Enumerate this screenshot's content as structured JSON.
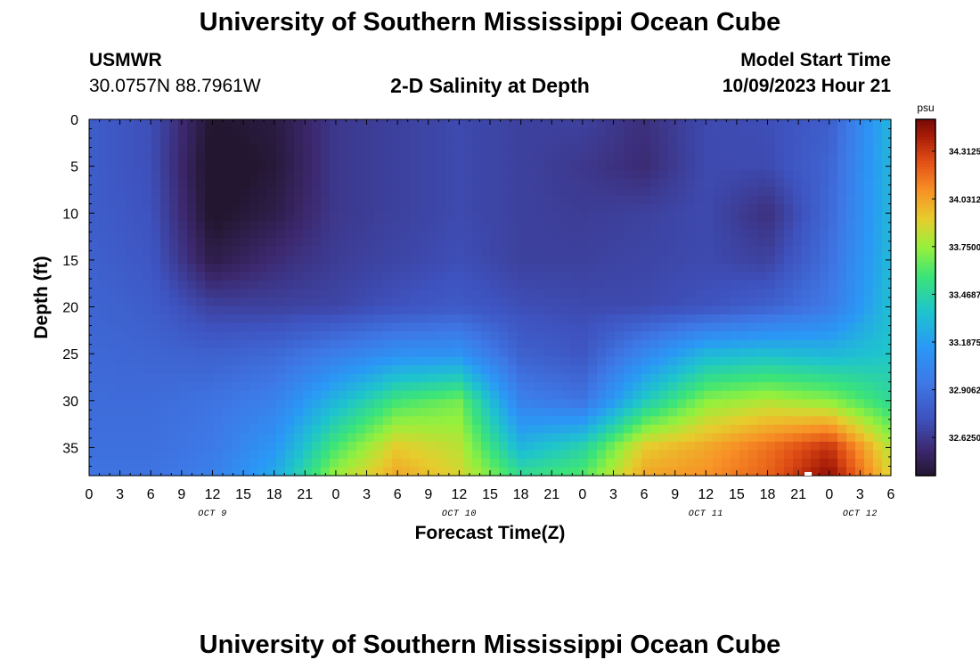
{
  "header": {
    "title": "University of Southern Mississippi Ocean Cube",
    "station": "USMWR",
    "coords": "30.0757N  88.7961W",
    "subtitle": "2-D Salinity at Depth",
    "run_label": "Model Start Time",
    "run_time": "10/09/2023 Hour 21"
  },
  "footer": {
    "title": "University of Southern Mississippi Ocean Cube"
  },
  "chart_data": {
    "type": "heatmap",
    "xlabel": "Forecast Time(Z)",
    "ylabel": "Depth (ft)",
    "x_tick_labels": [
      "0",
      "3",
      "6",
      "9",
      "12",
      "15",
      "18",
      "21",
      "0",
      "3",
      "6",
      "9",
      "12",
      "15",
      "18",
      "21",
      "0",
      "3",
      "6",
      "9",
      "12",
      "15",
      "18",
      "21",
      "0",
      "3",
      "6"
    ],
    "day_labels": [
      "OCT 9",
      "OCT 10",
      "OCT 11",
      "OCT 12"
    ],
    "y_tick_labels": [
      "0",
      "5",
      "10",
      "15",
      "20",
      "25",
      "30",
      "35"
    ],
    "xlim_hours": [
      0,
      78
    ],
    "ylim_ft": [
      0,
      38
    ],
    "y_inverted": true,
    "colorbar": {
      "unit": "psu",
      "labels": [
        "34.3125",
        "34.0312",
        "33.7500",
        "33.4687",
        "33.1875",
        "32.9062",
        "32.6250"
      ],
      "vmin": 32.4,
      "vmax": 34.5
    },
    "grid_note": "salinity (psu) sampled every 6 forecast hours (columns) at depths 0,5,...,35,38 ft (rows)",
    "grid_hours": [
      0,
      6,
      12,
      18,
      24,
      30,
      36,
      42,
      48,
      54,
      60,
      66,
      72,
      78
    ],
    "grid_depths": [
      0,
      5,
      10,
      15,
      20,
      25,
      30,
      35,
      38
    ],
    "salinity": [
      [
        32.8,
        32.72,
        32.4,
        32.44,
        32.62,
        32.66,
        32.7,
        32.66,
        32.66,
        32.58,
        32.7,
        32.72,
        32.8,
        33.3
      ],
      [
        32.8,
        32.72,
        32.36,
        32.42,
        32.62,
        32.66,
        32.7,
        32.66,
        32.62,
        32.56,
        32.7,
        32.7,
        32.84,
        33.3
      ],
      [
        32.8,
        32.74,
        32.38,
        32.46,
        32.62,
        32.66,
        32.7,
        32.66,
        32.64,
        32.66,
        32.7,
        32.58,
        32.86,
        33.3
      ],
      [
        32.82,
        32.76,
        32.46,
        32.56,
        32.64,
        32.68,
        32.72,
        32.66,
        32.66,
        32.68,
        32.7,
        32.66,
        32.9,
        33.32
      ],
      [
        32.84,
        32.8,
        32.66,
        32.66,
        32.68,
        32.74,
        32.78,
        32.72,
        32.7,
        32.7,
        32.74,
        32.82,
        32.96,
        33.34
      ],
      [
        32.86,
        32.84,
        32.82,
        32.86,
        32.98,
        33.1,
        33.12,
        32.82,
        32.76,
        33.04,
        33.3,
        33.34,
        33.3,
        33.38
      ],
      [
        32.88,
        32.88,
        32.92,
        33.0,
        33.3,
        33.58,
        33.68,
        33.0,
        32.92,
        33.4,
        33.72,
        33.8,
        33.72,
        33.5
      ],
      [
        32.9,
        32.9,
        32.96,
        33.14,
        33.6,
        33.92,
        33.82,
        33.3,
        33.46,
        33.92,
        34.02,
        34.16,
        34.34,
        33.8
      ],
      [
        32.92,
        32.92,
        33.0,
        33.24,
        33.76,
        34.02,
        33.88,
        33.52,
        33.62,
        34.02,
        34.08,
        34.2,
        34.46,
        33.88
      ]
    ]
  }
}
